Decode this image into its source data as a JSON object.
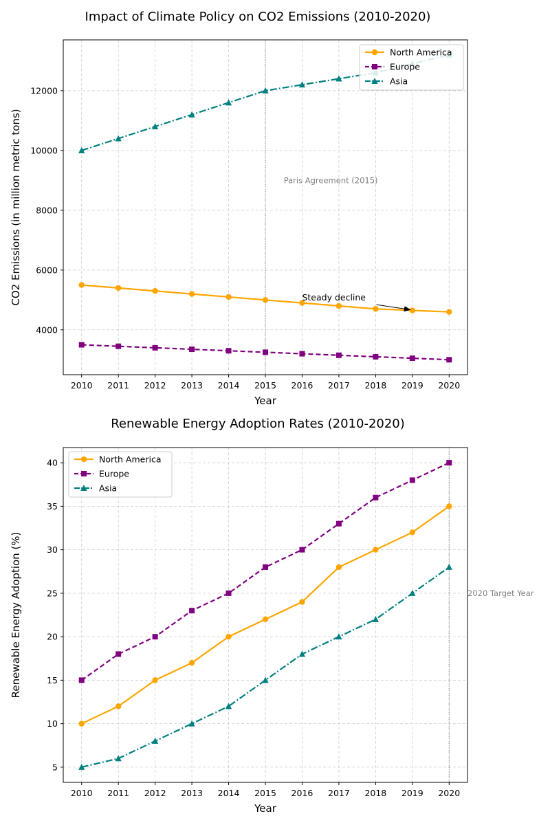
{
  "chart_data": [
    {
      "type": "line",
      "title": "Impact of Climate Policy on CO2 Emissions (2010-2020)",
      "xlabel": "Year",
      "ylabel": "CO2 Emissions (in million metric tons)",
      "x": [
        2010,
        2011,
        2012,
        2013,
        2014,
        2015,
        2016,
        2017,
        2018,
        2019,
        2020
      ],
      "xlim": [
        2009.5,
        2020.5
      ],
      "ylim": [
        2500,
        13700
      ],
      "yticks": [
        4000,
        6000,
        8000,
        10000,
        12000
      ],
      "grid": true,
      "legend_position": "top-right",
      "series": [
        {
          "name": "North America",
          "color": "#FFA500",
          "marker": "circle",
          "linestyle": "solid",
          "values": [
            5500,
            5400,
            5300,
            5200,
            5100,
            5000,
            4900,
            4800,
            4700,
            4650,
            4600
          ]
        },
        {
          "name": "Europe",
          "color": "#800080",
          "marker": "square",
          "linestyle": "dashed",
          "values": [
            3500,
            3450,
            3400,
            3350,
            3300,
            3250,
            3200,
            3150,
            3100,
            3050,
            3000
          ]
        },
        {
          "name": "Asia",
          "color": "#008080",
          "marker": "triangle",
          "linestyle": "dashdot",
          "values": [
            10000,
            10400,
            10800,
            11200,
            11600,
            12000,
            12200,
            12400,
            12600,
            12900,
            13200
          ]
        }
      ],
      "reference_line": {
        "x": 2015,
        "label": "Paris Agreement (2015)",
        "label_x": 2015.5,
        "label_y": 9000
      },
      "annotation": {
        "text": "Steady decline",
        "text_x": 2016,
        "text_y": 4980,
        "target_x": 2019,
        "target_y": 4650
      }
    },
    {
      "type": "line",
      "title": "Renewable Energy Adoption Rates (2010-2020)",
      "xlabel": "Year",
      "ylabel": "Renewable Energy Adoption (%)",
      "x": [
        2010,
        2011,
        2012,
        2013,
        2014,
        2015,
        2016,
        2017,
        2018,
        2019,
        2020
      ],
      "xlim": [
        2009.5,
        2020.5
      ],
      "ylim": [
        3.25,
        41.75
      ],
      "yticks": [
        5,
        10,
        15,
        20,
        25,
        30,
        35,
        40
      ],
      "grid": true,
      "legend_position": "top-left",
      "series": [
        {
          "name": "North America",
          "color": "#FFA500",
          "marker": "circle",
          "linestyle": "solid",
          "values": [
            10,
            12,
            15,
            17,
            20,
            22,
            24,
            28,
            30,
            32,
            35
          ]
        },
        {
          "name": "Europe",
          "color": "#800080",
          "marker": "square",
          "linestyle": "dashed",
          "values": [
            15,
            18,
            20,
            23,
            25,
            28,
            30,
            33,
            36,
            38,
            40
          ]
        },
        {
          "name": "Asia",
          "color": "#008080",
          "marker": "triangle",
          "linestyle": "dashdot",
          "values": [
            5,
            6,
            8,
            10,
            12,
            15,
            18,
            20,
            22,
            25,
            28
          ]
        }
      ],
      "reference_line": {
        "x": 2020,
        "label": "2020 Target Year",
        "label_x": 2020.5,
        "label_y": 25
      }
    }
  ]
}
